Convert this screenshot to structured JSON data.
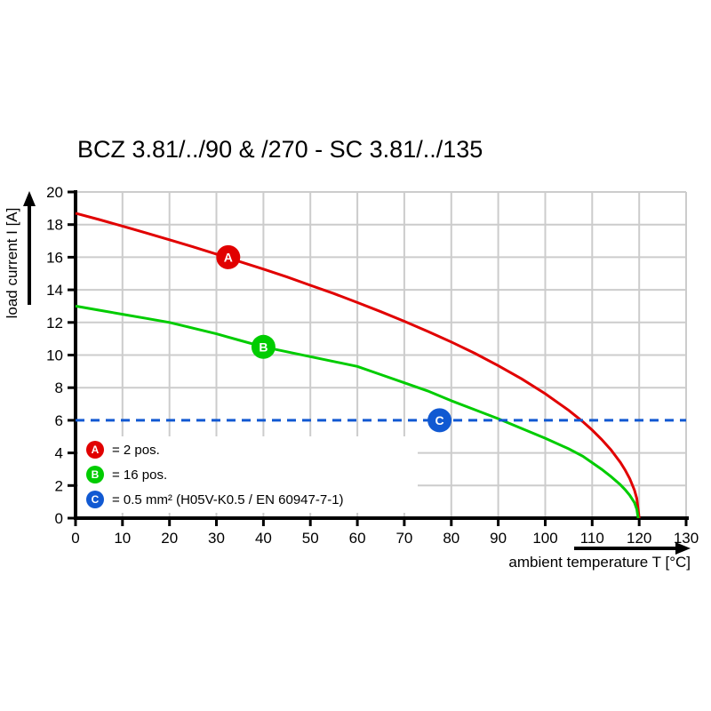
{
  "title": "BCZ 3.81/../90 & /270 - SC 3.81/../135",
  "chart_data": {
    "type": "line",
    "title": "BCZ 3.81/../90 & /270 - SC 3.81/../135",
    "xlabel": "ambient temperature T [°C]",
    "ylabel": "load current I [A]",
    "xlim": [
      0,
      130
    ],
    "ylim": [
      0,
      20
    ],
    "x_ticks": [
      0,
      10,
      20,
      30,
      40,
      50,
      60,
      70,
      80,
      90,
      100,
      110,
      120,
      130
    ],
    "y_ticks": [
      0,
      2,
      4,
      6,
      8,
      10,
      12,
      14,
      16,
      18,
      20
    ],
    "x_gridlines": [
      10,
      20,
      30,
      40,
      50,
      60,
      70,
      80,
      90,
      100,
      110,
      120,
      130
    ],
    "y_gridlines": [
      2,
      4,
      8,
      10,
      12,
      14,
      16,
      18,
      20
    ],
    "grid": true,
    "grid_color": "#cccccc",
    "axis_color": "#000000",
    "legend_position": "lower-left",
    "series": [
      {
        "name": "A",
        "description": "2 pos.",
        "color": "#e10000",
        "dashed": false,
        "marker": {
          "letter": "A",
          "x": 32.5,
          "y": 16
        },
        "points": [
          [
            0,
            18.7
          ],
          [
            5,
            18.31
          ],
          [
            10,
            17.91
          ],
          [
            15,
            17.49
          ],
          [
            20,
            17.07
          ],
          [
            25,
            16.64
          ],
          [
            30,
            16.19
          ],
          [
            35,
            15.73
          ],
          [
            40,
            15.27
          ],
          [
            45,
            14.79
          ],
          [
            50,
            14.28
          ],
          [
            55,
            13.77
          ],
          [
            60,
            13.22
          ],
          [
            65,
            12.66
          ],
          [
            70,
            12.07
          ],
          [
            75,
            11.45
          ],
          [
            80,
            10.8
          ],
          [
            85,
            10.11
          ],
          [
            90,
            9.35
          ],
          [
            95,
            8.54
          ],
          [
            100,
            7.63
          ],
          [
            105,
            6.61
          ],
          [
            108,
            5.92
          ],
          [
            110,
            5.4
          ],
          [
            112,
            4.83
          ],
          [
            114,
            4.19
          ],
          [
            116,
            3.42
          ],
          [
            117,
            2.96
          ],
          [
            118,
            2.42
          ],
          [
            119,
            1.71
          ],
          [
            119.5,
            1.21
          ],
          [
            120,
            0
          ]
        ]
      },
      {
        "name": "B",
        "description": "16 pos.",
        "color": "#00cc00",
        "dashed": false,
        "marker": {
          "letter": "B",
          "x": 40,
          "y": 10.5
        },
        "points": [
          [
            0,
            13
          ],
          [
            5,
            12.75
          ],
          [
            10,
            12.5
          ],
          [
            15,
            12.25
          ],
          [
            20,
            12
          ],
          [
            25,
            11.65
          ],
          [
            30,
            11.3
          ],
          [
            35,
            10.9
          ],
          [
            40,
            10.5
          ],
          [
            45,
            10.2
          ],
          [
            50,
            9.9
          ],
          [
            55,
            9.6
          ],
          [
            60,
            9.3
          ],
          [
            65,
            8.8
          ],
          [
            70,
            8.3
          ],
          [
            75,
            7.8
          ],
          [
            80,
            7.2
          ],
          [
            85,
            6.65
          ],
          [
            90,
            6.1
          ],
          [
            95,
            5.5
          ],
          [
            100,
            4.9
          ],
          [
            105,
            4.25
          ],
          [
            108,
            3.8
          ],
          [
            110,
            3.4
          ],
          [
            112,
            3
          ],
          [
            114,
            2.55
          ],
          [
            116,
            2.05
          ],
          [
            117,
            1.75
          ],
          [
            118,
            1.4
          ],
          [
            119,
            0.95
          ],
          [
            119.5,
            0.55
          ],
          [
            119.8,
            0
          ]
        ]
      },
      {
        "name": "C",
        "description": "0.5 mm² (H05V-K0.5 / EN 60947-7-1)",
        "color": "#1159d2",
        "dashed": true,
        "marker": {
          "letter": "C",
          "x": 77.5,
          "y": 6
        },
        "points": [
          [
            0,
            6
          ],
          [
            130,
            6
          ]
        ]
      }
    ],
    "legend": [
      {
        "letter": "A",
        "color": "#e10000",
        "text": "= 2 pos."
      },
      {
        "letter": "B",
        "color": "#00cc00",
        "text": "= 16 pos."
      },
      {
        "letter": "C",
        "color": "#1159d2",
        "text": "= 0.5 mm² (H05V-K0.5 / EN 60947-7-1)"
      }
    ]
  }
}
